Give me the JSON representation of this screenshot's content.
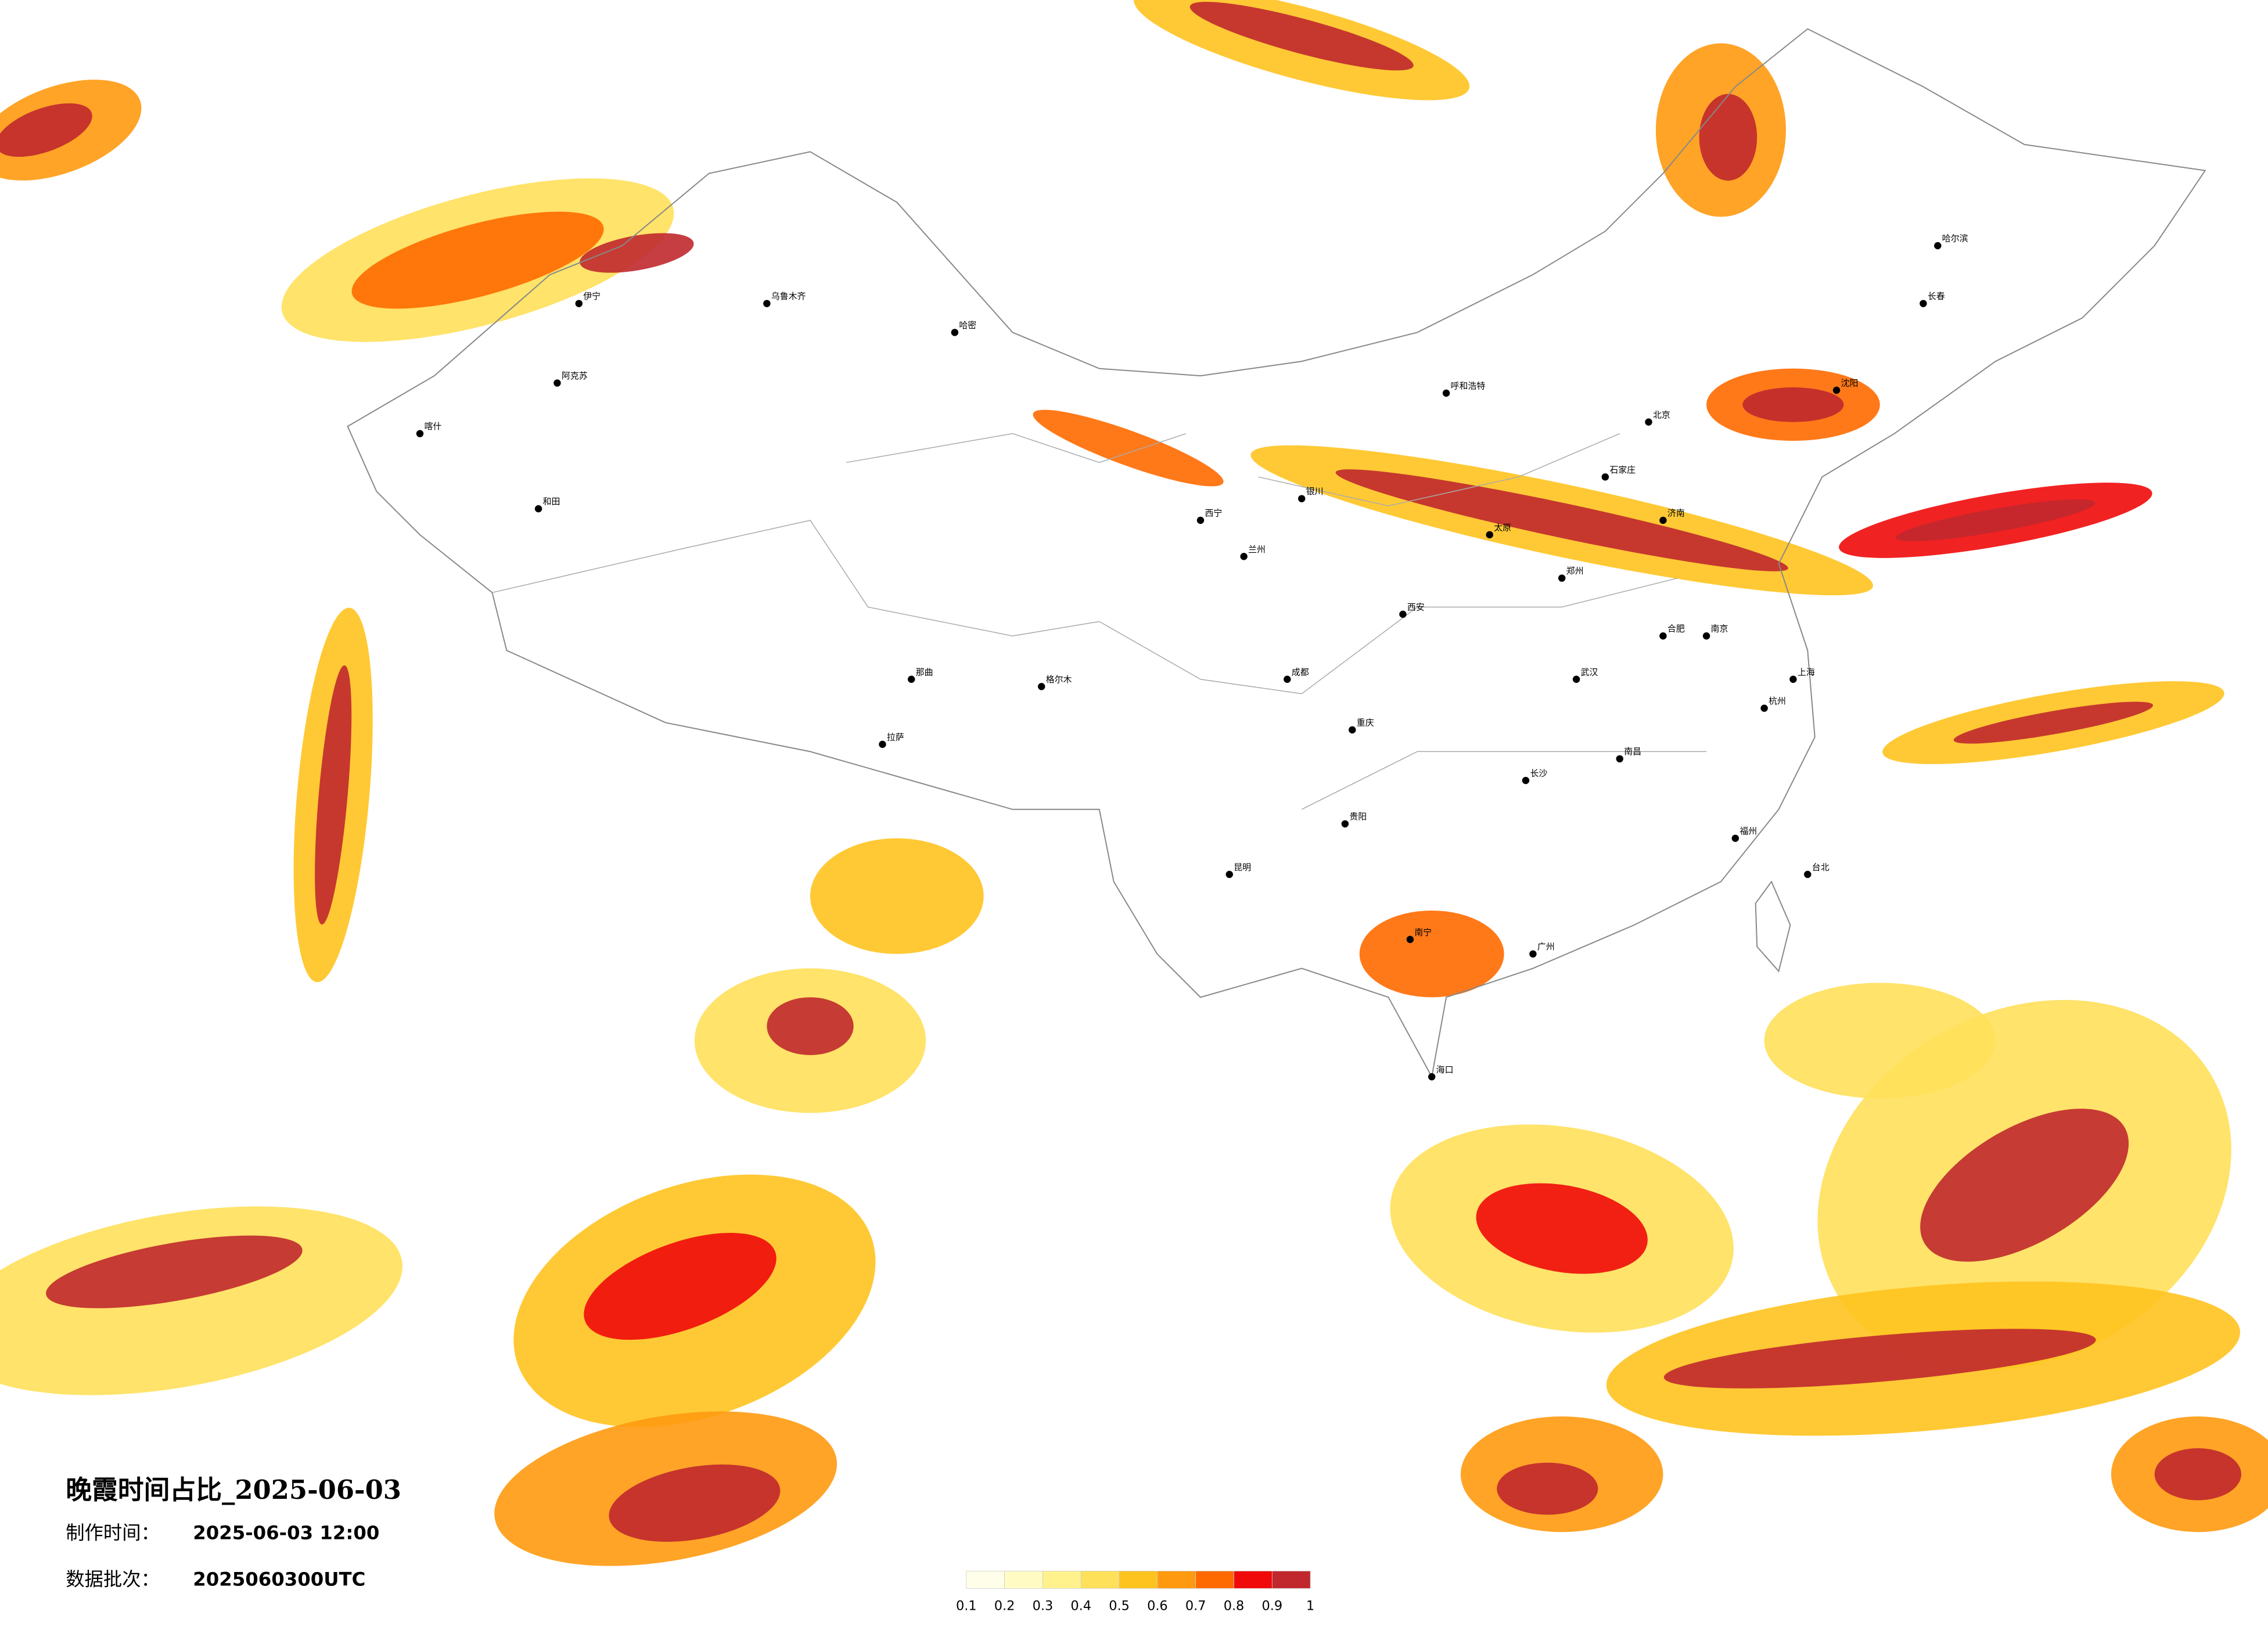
{
  "title": "晚霞时间占比_2025-06-03",
  "made_time": {
    "label": "制作时间：",
    "value": "2025-06-03 12:00"
  },
  "batch": {
    "label": "数据批次：",
    "value": "2025060300UTC"
  },
  "legend": {
    "bounds": [
      0.1,
      0.2,
      0.3,
      0.4,
      0.5,
      0.6,
      0.7,
      0.8,
      0.9,
      1
    ],
    "colors": [
      "#fffee8",
      "#fffbc2",
      "#fff28c",
      "#ffe05a",
      "#ffc31f",
      "#ff9a10",
      "#ff6a00",
      "#f00a0a",
      "#c0282e"
    ]
  },
  "cities": [
    "北京",
    "上海",
    "广州",
    "成都",
    "重庆",
    "武汉",
    "长沙",
    "西安",
    "郑州",
    "南京",
    "杭州",
    "福州",
    "南昌",
    "昆明",
    "贵阳",
    "南宁",
    "海口",
    "台北",
    "哈尔滨",
    "长春",
    "沈阳",
    "呼和浩特",
    "兰州",
    "西宁",
    "拉萨",
    "那曲",
    "格尔木",
    "乌鲁木齐",
    "哈密",
    "伊宁",
    "阿克苏",
    "喀什",
    "和田",
    "太原",
    "石家庄",
    "济南",
    "合肥",
    "银川"
  ]
}
